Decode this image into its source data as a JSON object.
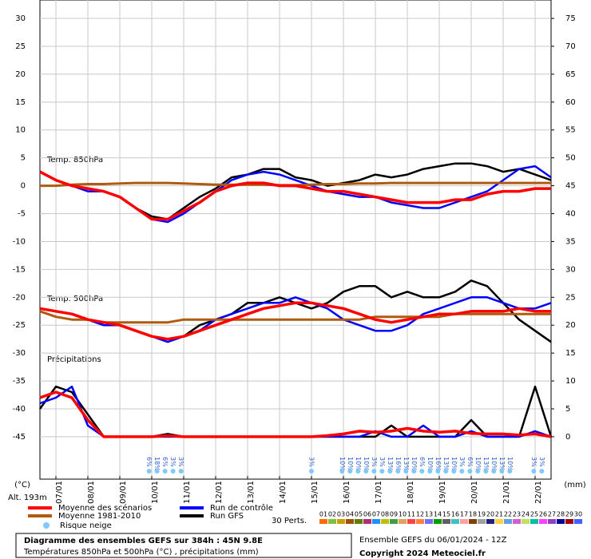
{
  "chart_data": {
    "type": "line",
    "title": "Diagramme des ensembles GEFS sur 384h : 45N 9.8E",
    "subtitle": "Températures 850hPa et 500hPa (°C) , précipitations (mm)",
    "run_info": "Ensemble GEFS du 06/01/2024 - 12Z",
    "copyright": "Copyright 2024 Meteociel.fr",
    "y_label": "(°C)",
    "y2_label": "(mm)",
    "altitude": "Alt. 193m",
    "panel_labels": [
      "Temp. 850hPa",
      "Temp. 500hPa",
      "Précipitations"
    ],
    "grid": true,
    "xlim": [
      0,
      384
    ],
    "xticks": [
      {
        "value": 12,
        "label": "07/01"
      },
      {
        "value": 36,
        "label": "08/01"
      },
      {
        "value": 60,
        "label": "09/01"
      },
      {
        "value": 84,
        "label": "10/01"
      },
      {
        "value": 108,
        "label": "11/01"
      },
      {
        "value": 132,
        "label": "12/01"
      },
      {
        "value": 156,
        "label": "13/01"
      },
      {
        "value": 180,
        "label": "14/01"
      },
      {
        "value": 204,
        "label": "15/01"
      },
      {
        "value": 228,
        "label": "16/01"
      },
      {
        "value": 252,
        "label": "17/01"
      },
      {
        "value": 276,
        "label": "18/01"
      },
      {
        "value": 300,
        "label": "19/01"
      },
      {
        "value": 324,
        "label": "20/01"
      },
      {
        "value": 348,
        "label": "21/01"
      },
      {
        "value": 372,
        "label": "22/01"
      }
    ],
    "ylim": [
      -52.6,
      33.3
    ],
    "yticks": [
      30,
      25,
      20,
      15,
      10,
      5,
      0,
      -5,
      -10,
      -15,
      -20,
      -25,
      -30,
      -35,
      -40,
      -45
    ],
    "y2lim": [
      -7.6,
      78.3
    ],
    "y2ticks": [
      75,
      70,
      65,
      60,
      55,
      50,
      45,
      40,
      35,
      30,
      25,
      20,
      15,
      10,
      5,
      0
    ],
    "x": [
      0,
      12,
      24,
      36,
      48,
      60,
      72,
      84,
      96,
      108,
      120,
      132,
      144,
      156,
      168,
      180,
      192,
      204,
      216,
      228,
      240,
      252,
      264,
      276,
      288,
      300,
      312,
      324,
      336,
      348,
      360,
      372,
      384
    ],
    "scenarios": [
      {
        "name": "Moyenne des scénarios",
        "color": "#ff0000",
        "width": 3.5,
        "t850": [
          2.5,
          1,
          0,
          -0.5,
          -1,
          -2,
          -4,
          -6,
          -6,
          -4.5,
          -3,
          -1,
          0,
          0.5,
          0.5,
          0,
          0,
          -0.5,
          -1,
          -1,
          -1.5,
          -2,
          -2.5,
          -3,
          -3,
          -3,
          -2.5,
          -2.5,
          -1.5,
          -1,
          -1,
          -0.5,
          -0.5
        ],
        "t500": [
          -22,
          -22.5,
          -23,
          -24,
          -24.5,
          -25,
          -26,
          -27,
          -27.5,
          -27,
          -26,
          -25,
          -24,
          -23,
          -22,
          -21.5,
          -21,
          -21,
          -21.5,
          -22,
          -23,
          -24,
          -24.5,
          -24,
          -23.5,
          -23,
          -23,
          -22.5,
          -22.5,
          -22.5,
          -22,
          -22.5,
          -22.5
        ],
        "precip": [
          7,
          8,
          7,
          3,
          0,
          0,
          0,
          0,
          0.2,
          0,
          0,
          0,
          0,
          0,
          0,
          0,
          0,
          0,
          0.2,
          0.5,
          1,
          0.8,
          1,
          1.5,
          1,
          0.8,
          1,
          0.6,
          0.5,
          0.5,
          0.3,
          0.5,
          0
        ]
      },
      {
        "name": "Moyenne 1981-2010",
        "color": "#b05a10",
        "width": 3,
        "t850": [
          0,
          0,
          0.2,
          0.3,
          0.3,
          0.4,
          0.5,
          0.5,
          0.5,
          0.4,
          0.3,
          0.2,
          0.2,
          0.2,
          0.2,
          0.1,
          0.1,
          0.2,
          0.3,
          0.3,
          0.4,
          0.4,
          0.5,
          0.5,
          0.5,
          0.5,
          0.5,
          0.5,
          0.5,
          0.5,
          0.5,
          0.5,
          0.5
        ],
        "t500": [
          -22.5,
          -23.5,
          -24,
          -24,
          -24.5,
          -24.5,
          -24.5,
          -24.5,
          -24.5,
          -24,
          -24,
          -24,
          -24,
          -24,
          -24,
          -24,
          -24,
          -24,
          -24,
          -24,
          -24,
          -23.5,
          -23.5,
          -23.5,
          -23.5,
          -23.5,
          -23,
          -23,
          -23,
          -23,
          -23,
          -23,
          -23
        ]
      },
      {
        "name": "Run de contrôle",
        "color": "#0000ff",
        "width": 2.5,
        "t850": [
          2.5,
          1,
          0,
          -1,
          -1,
          -2,
          -4,
          -6,
          -6.5,
          -5,
          -3,
          -1,
          1,
          2,
          2.5,
          2,
          1,
          0,
          -1,
          -1.5,
          -2,
          -2,
          -3,
          -3.5,
          -4,
          -4,
          -3,
          -2,
          -1,
          1,
          3,
          3.5,
          1.5
        ],
        "t500": [
          -22,
          -22.5,
          -23,
          -24,
          -25,
          -25,
          -26,
          -27,
          -28,
          -27,
          -26,
          -24,
          -23,
          -22,
          -21,
          -21,
          -20,
          -21,
          -22,
          -24,
          -25,
          -26,
          -26,
          -25,
          -23,
          -22,
          -21,
          -20,
          -20,
          -21,
          -22,
          -22,
          -21
        ],
        "precip": [
          6,
          7,
          9,
          2,
          0,
          0,
          0,
          0,
          0,
          0,
          0,
          0,
          0,
          0,
          0,
          0,
          0,
          0,
          0,
          0,
          0,
          1,
          0,
          0,
          2,
          0,
          0,
          1,
          0,
          0,
          0,
          1,
          0
        ]
      },
      {
        "name": "Run GFS",
        "color": "#000000",
        "width": 2.5,
        "t850": [
          2.5,
          1,
          0,
          -0.5,
          -1,
          -2,
          -4,
          -5.5,
          -6,
          -4,
          -2,
          -0.5,
          1.5,
          2,
          3,
          3,
          1.5,
          1,
          0,
          0.5,
          1,
          2,
          1.5,
          2,
          3,
          3.5,
          4,
          4,
          3.5,
          2.5,
          3,
          2,
          1
        ],
        "t500": [
          -22,
          -22.5,
          -23,
          -24,
          -25,
          -25,
          -26,
          -27,
          -27.5,
          -27,
          -25,
          -24,
          -23,
          -21,
          -21,
          -20,
          -21,
          -22,
          -21,
          -19,
          -18,
          -18,
          -20,
          -19,
          -20,
          -20,
          -19,
          -17,
          -18,
          -21,
          -24,
          -26,
          -28
        ],
        "precip": [
          5,
          9,
          8,
          4,
          0,
          0,
          0,
          0,
          0.5,
          0,
          0,
          0,
          0,
          0,
          0,
          0,
          0,
          0,
          0,
          0,
          0,
          0,
          2,
          0,
          0,
          0,
          0,
          3,
          0,
          0,
          0,
          9,
          0
        ]
      }
    ],
    "snow_label": "Risque neige",
    "snow_risk": [
      {
        "x": 82,
        "label": "6%"
      },
      {
        "x": 88,
        "label": "18%"
      },
      {
        "x": 94,
        "label": "6%"
      },
      {
        "x": 100,
        "label": "3%"
      },
      {
        "x": 106,
        "label": "3%"
      },
      {
        "x": 204,
        "label": "3%"
      },
      {
        "x": 227,
        "label": "10%"
      },
      {
        "x": 233,
        "label": "10%"
      },
      {
        "x": 239,
        "label": "10%"
      },
      {
        "x": 245,
        "label": "10%"
      },
      {
        "x": 251,
        "label": "3%"
      },
      {
        "x": 257,
        "label": "3%"
      },
      {
        "x": 263,
        "label": "13%"
      },
      {
        "x": 269,
        "label": "16%"
      },
      {
        "x": 275,
        "label": "13%"
      },
      {
        "x": 281,
        "label": "10%"
      },
      {
        "x": 287,
        "label": "6%"
      },
      {
        "x": 293,
        "label": "10%"
      },
      {
        "x": 299,
        "label": "16%"
      },
      {
        "x": 305,
        "label": "13%"
      },
      {
        "x": 311,
        "label": "10%"
      },
      {
        "x": 317,
        "label": "3%"
      },
      {
        "x": 323,
        "label": "6%"
      },
      {
        "x": 329,
        "label": "10%"
      },
      {
        "x": 335,
        "label": "13%"
      },
      {
        "x": 341,
        "label": "10%"
      },
      {
        "x": 347,
        "label": "13%"
      },
      {
        "x": 353,
        "label": "10%"
      },
      {
        "x": 371,
        "label": "3%"
      },
      {
        "x": 377,
        "label": "3%"
      }
    ],
    "perturbations_label": "30 Perts.",
    "perturbations": [
      {
        "name": "01",
        "color": "#ff6a00"
      },
      {
        "name": "02",
        "color": "#7fbf3f"
      },
      {
        "name": "03",
        "color": "#c8a000"
      },
      {
        "name": "04",
        "color": "#a05000"
      },
      {
        "name": "05",
        "color": "#5f7f00"
      },
      {
        "name": "06",
        "color": "#b03070"
      },
      {
        "name": "07",
        "color": "#2090ff"
      },
      {
        "name": "08",
        "color": "#c0c000"
      },
      {
        "name": "09",
        "color": "#40a040"
      },
      {
        "name": "10",
        "color": "#e0a060"
      },
      {
        "name": "11",
        "color": "#ff4040"
      },
      {
        "name": "12",
        "color": "#ff8040"
      },
      {
        "name": "13",
        "color": "#7070ff"
      },
      {
        "name": "14",
        "color": "#00a000"
      },
      {
        "name": "15",
        "color": "#606060"
      },
      {
        "name": "16",
        "color": "#40c0c0"
      },
      {
        "name": "17",
        "color": "#ffa0a0"
      },
      {
        "name": "18",
        "color": "#804000"
      },
      {
        "name": "19",
        "color": "#a0a0a0"
      },
      {
        "name": "20",
        "color": "#202080"
      },
      {
        "name": "21",
        "color": "#ffd040"
      },
      {
        "name": "22",
        "color": "#60a0e0"
      },
      {
        "name": "23",
        "color": "#d060d0"
      },
      {
        "name": "24",
        "color": "#c0e060"
      },
      {
        "name": "25",
        "color": "#00c0a0"
      },
      {
        "name": "26",
        "color": "#ff40ff"
      },
      {
        "name": "27",
        "color": "#9040c0"
      },
      {
        "name": "28",
        "color": "#0000a0"
      },
      {
        "name": "29",
        "color": "#a00000"
      },
      {
        "name": "30",
        "color": "#4060ff"
      }
    ]
  }
}
